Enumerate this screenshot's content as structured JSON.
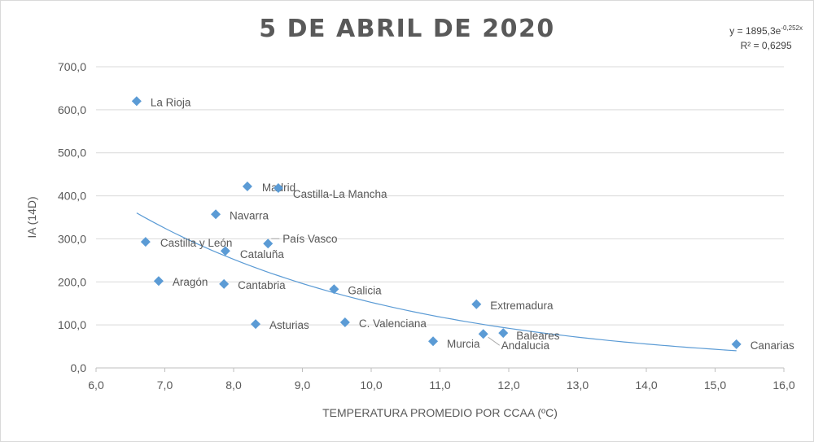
{
  "chart_data": {
    "type": "scatter",
    "title": "5 DE ABRIL DE 2020",
    "xlabel": "TEMPERATURA  PROMEDIO POR CCAA (ºC)",
    "ylabel": "IA (14D)",
    "xlim": [
      6.0,
      16.0
    ],
    "ylim": [
      0,
      700
    ],
    "x_ticks": [
      "6,0",
      "7,0",
      "8,0",
      "9,0",
      "10,0",
      "11,0",
      "12,0",
      "13,0",
      "14,0",
      "15,0",
      "16,0"
    ],
    "y_ticks": [
      "0,0",
      "100,0",
      "200,0",
      "300,0",
      "400,0",
      "500,0",
      "600,0",
      "700,0"
    ],
    "grid": "horizontal",
    "marker_color": "#5b9bd5",
    "trendline": {
      "type": "exponential",
      "a": 1895.3,
      "b": -0.252,
      "color": "#5b9bd5",
      "equation_label": "y = 1895,3e",
      "equation_exponent": "-0,252x",
      "r2_label": "R² = 0,6295"
    },
    "points": [
      {
        "label": "La Rioja",
        "x": 6.59,
        "y": 620
      },
      {
        "label": "Madrid",
        "x": 8.2,
        "y": 422
      },
      {
        "label": "Castilla-La Mancha",
        "x": 8.65,
        "y": 418
      },
      {
        "label": "Navarra",
        "x": 7.74,
        "y": 357
      },
      {
        "label": "Castilla y León",
        "x": 6.72,
        "y": 293
      },
      {
        "label": "País Vasco",
        "x": 8.5,
        "y": 289
      },
      {
        "label": "Cataluña",
        "x": 7.88,
        "y": 272
      },
      {
        "label": "Aragón",
        "x": 6.91,
        "y": 202
      },
      {
        "label": "Cantabria",
        "x": 7.86,
        "y": 195
      },
      {
        "label": "Galicia",
        "x": 9.46,
        "y": 183
      },
      {
        "label": "Extremadura",
        "x": 11.53,
        "y": 148
      },
      {
        "label": "Asturias",
        "x": 8.32,
        "y": 102
      },
      {
        "label": "C. Valenciana",
        "x": 9.62,
        "y": 106
      },
      {
        "label": "Murcia",
        "x": 10.9,
        "y": 62
      },
      {
        "label": "Andalucia",
        "x": 11.63,
        "y": 79
      },
      {
        "label": "Baleares",
        "x": 11.92,
        "y": 81
      },
      {
        "label": "Canarias",
        "x": 15.31,
        "y": 55
      }
    ]
  }
}
